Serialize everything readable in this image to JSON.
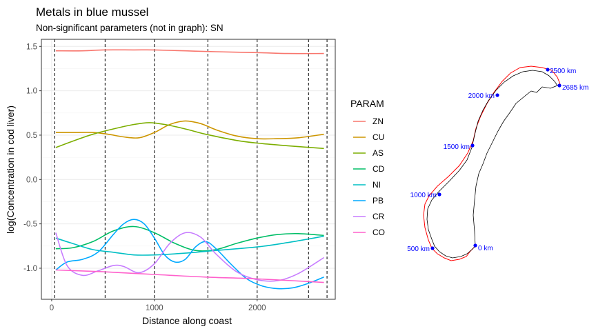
{
  "chart_data": {
    "type": "line",
    "title": "Metals in blue mussel",
    "subtitle": "Non-significant parameters (not in graph): SN",
    "xlabel": "Distance along coast",
    "ylabel": "log(Concentration in cod liver)",
    "xlim": [
      -100,
      2760
    ],
    "ylim": [
      -1.35,
      1.58
    ],
    "x_ticks": [
      0,
      1000,
      2000
    ],
    "x_tick_labels": [
      "0",
      "1000",
      "2000"
    ],
    "y_ticks": [
      -1.0,
      -0.5,
      0.0,
      0.5,
      1.0,
      1.5
    ],
    "y_tick_labels": [
      "-1.0",
      "-0.5",
      "0.0",
      "0.5",
      "1.0",
      "1.5"
    ],
    "grid": true,
    "legend_title": "PARAM",
    "legend_position": "right",
    "vlines": [
      30,
      520,
      1000,
      1520,
      2000,
      2500,
      2680
    ],
    "series": [
      {
        "name": "ZN",
        "color": "#F8766D",
        "x": [
          40,
          300,
          500,
          800,
          1000,
          1300,
          1600,
          2000,
          2300,
          2650
        ],
        "y": [
          1.45,
          1.45,
          1.46,
          1.46,
          1.46,
          1.45,
          1.44,
          1.43,
          1.42,
          1.42
        ]
      },
      {
        "name": "CU",
        "color": "#CD9600",
        "x": [
          40,
          200,
          400,
          550,
          700,
          850,
          1000,
          1150,
          1300,
          1450,
          1600,
          1800,
          2000,
          2200,
          2400,
          2650
        ],
        "y": [
          0.53,
          0.53,
          0.53,
          0.51,
          0.48,
          0.47,
          0.53,
          0.62,
          0.66,
          0.63,
          0.56,
          0.49,
          0.46,
          0.46,
          0.47,
          0.51
        ]
      },
      {
        "name": "AS",
        "color": "#7CAE00",
        "x": [
          40,
          200,
          400,
          600,
          800,
          950,
          1100,
          1300,
          1500,
          1800,
          2000,
          2300,
          2650
        ],
        "y": [
          0.36,
          0.43,
          0.51,
          0.57,
          0.62,
          0.64,
          0.62,
          0.57,
          0.51,
          0.44,
          0.41,
          0.38,
          0.35
        ]
      },
      {
        "name": "CD",
        "color": "#00BE67",
        "x": [
          40,
          200,
          400,
          600,
          800,
          1000,
          1200,
          1400,
          1600,
          1800,
          2000,
          2200,
          2400,
          2650
        ],
        "y": [
          -0.78,
          -0.77,
          -0.7,
          -0.58,
          -0.53,
          -0.6,
          -0.72,
          -0.8,
          -0.79,
          -0.72,
          -0.66,
          -0.62,
          -0.61,
          -0.63
        ]
      },
      {
        "name": "NI",
        "color": "#00BFC4",
        "x": [
          40,
          200,
          400,
          600,
          800,
          1000,
          1300,
          1600,
          2000,
          2300,
          2650
        ],
        "y": [
          -0.66,
          -0.72,
          -0.79,
          -0.82,
          -0.85,
          -0.85,
          -0.83,
          -0.8,
          -0.76,
          -0.71,
          -0.64
        ]
      },
      {
        "name": "PB",
        "color": "#00A9FF",
        "x": [
          40,
          150,
          300,
          450,
          600,
          700,
          800,
          900,
          1000,
          1100,
          1200,
          1300,
          1400,
          1500,
          1600,
          1750,
          1900,
          2050,
          2200,
          2350,
          2500,
          2650
        ],
        "y": [
          -1.02,
          -0.93,
          -0.9,
          -0.82,
          -0.62,
          -0.5,
          -0.45,
          -0.5,
          -0.66,
          -0.85,
          -0.93,
          -0.9,
          -0.76,
          -0.7,
          -0.78,
          -0.96,
          -1.12,
          -1.2,
          -1.23,
          -1.22,
          -1.17,
          -1.1
        ]
      },
      {
        "name": "CR",
        "color": "#C77CFF",
        "x": [
          40,
          150,
          300,
          450,
          600,
          700,
          850,
          1000,
          1150,
          1300,
          1450,
          1600,
          1800,
          2000,
          2200,
          2400,
          2650
        ],
        "y": [
          -0.6,
          -0.97,
          -1.08,
          -1.03,
          -0.97,
          -0.98,
          -1.05,
          -0.95,
          -0.72,
          -0.6,
          -0.65,
          -0.84,
          -1.04,
          -1.13,
          -1.14,
          -1.06,
          -0.88
        ]
      },
      {
        "name": "CO",
        "color": "#FF61CC",
        "x": [
          40,
          500,
          1000,
          1500,
          2000,
          2650
        ],
        "y": [
          -1.02,
          -1.04,
          -1.07,
          -1.1,
          -1.12,
          -1.16
        ]
      }
    ]
  },
  "map": {
    "labels": [
      "0 km",
      "500 km",
      "1000 km",
      "1500 km",
      "2000 km",
      "2500 km",
      "2685 km"
    ],
    "point_color": "#0000ff",
    "outline_color": "#ff0000"
  }
}
